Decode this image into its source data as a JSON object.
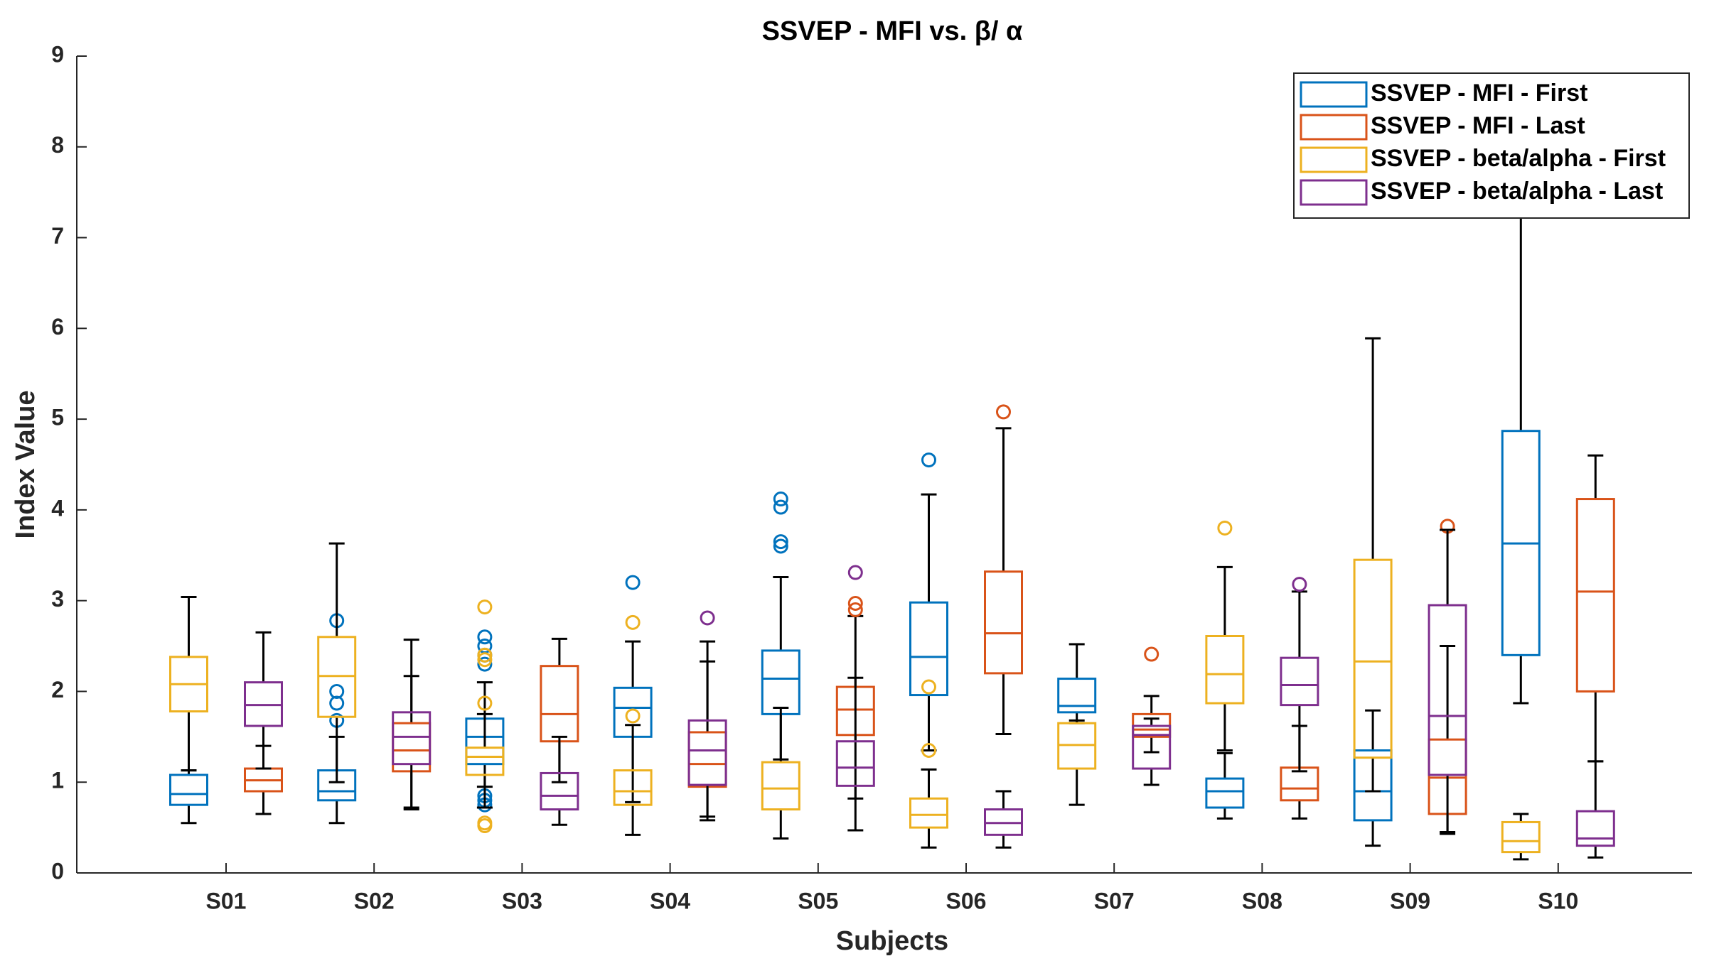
{
  "chart_data": {
    "type": "box",
    "title": "SSVEP - MFI vs.  β/ α",
    "xlabel": "Subjects",
    "ylabel": "Index Value",
    "categories": [
      "S01",
      "S02",
      "S03",
      "S04",
      "S05",
      "S06",
      "S07",
      "S08",
      "S09",
      "S10"
    ],
    "ylim": [
      0,
      9
    ],
    "yticks": [
      0,
      1,
      2,
      3,
      4,
      5,
      6,
      7,
      8,
      9
    ],
    "legend": "upper right",
    "series": [
      {
        "name": "SSVEP - MFI - First",
        "color": "#0072bd",
        "position": "first",
        "boxes": [
          {
            "min": 0.55,
            "q1": 0.75,
            "median": 0.87,
            "q3": 1.08,
            "max": 1.13,
            "outliers": []
          },
          {
            "min": 0.55,
            "q1": 0.8,
            "median": 0.9,
            "q3": 1.13,
            "max": 1.5,
            "outliers": [
              1.68,
              1.87,
              2.0,
              2.78
            ]
          },
          {
            "min": 0.95,
            "q1": 1.2,
            "median": 1.5,
            "q3": 1.7,
            "max": 2.1,
            "outliers": [
              0.75,
              0.8,
              0.85,
              2.3,
              2.4,
              2.5,
              2.6
            ]
          },
          {
            "min": 0.78,
            "q1": 1.5,
            "median": 1.82,
            "q3": 2.04,
            "max": 2.55,
            "outliers": [
              3.2
            ]
          },
          {
            "min": 1.25,
            "q1": 1.75,
            "median": 2.14,
            "q3": 2.45,
            "max": 3.26,
            "outliers": [
              3.6,
              3.65,
              4.03,
              4.12
            ]
          },
          {
            "min": 1.35,
            "q1": 1.96,
            "median": 2.38,
            "q3": 2.98,
            "max": 4.17,
            "outliers": [
              4.55
            ]
          },
          {
            "min": 1.65,
            "q1": 1.77,
            "median": 1.84,
            "q3": 2.14,
            "max": 2.52,
            "outliers": []
          },
          {
            "min": 0.6,
            "q1": 0.72,
            "median": 0.9,
            "q3": 1.04,
            "max": 1.32,
            "outliers": []
          },
          {
            "min": 0.3,
            "q1": 0.58,
            "median": 0.9,
            "q3": 1.35,
            "max": 1.79,
            "outliers": []
          },
          {
            "min": 1.87,
            "q1": 2.4,
            "median": 3.63,
            "q3": 4.87,
            "max": 7.9,
            "outliers": []
          }
        ]
      },
      {
        "name": "SSVEP - MFI - Last",
        "color": "#d95319",
        "position": "last",
        "boxes": [
          {
            "min": 0.65,
            "q1": 0.9,
            "median": 1.02,
            "q3": 1.15,
            "max": 1.4,
            "outliers": []
          },
          {
            "min": 0.7,
            "q1": 1.12,
            "median": 1.35,
            "q3": 1.65,
            "max": 2.17,
            "outliers": []
          },
          {
            "min": 1.0,
            "q1": 1.45,
            "median": 1.75,
            "q3": 2.28,
            "max": 2.58,
            "outliers": []
          },
          {
            "min": 0.62,
            "q1": 0.95,
            "median": 1.2,
            "q3": 1.55,
            "max": 2.33,
            "outliers": []
          },
          {
            "min": 0.82,
            "q1": 1.52,
            "median": 1.8,
            "q3": 2.05,
            "max": 2.83,
            "outliers": [
              2.9,
              2.97
            ]
          },
          {
            "min": 1.53,
            "q1": 2.2,
            "median": 2.64,
            "q3": 3.32,
            "max": 4.9,
            "outliers": [
              5.08
            ]
          },
          {
            "min": 1.33,
            "q1": 1.5,
            "median": 1.58,
            "q3": 1.75,
            "max": 1.95,
            "outliers": [
              2.41
            ]
          },
          {
            "min": 0.6,
            "q1": 0.8,
            "median": 0.93,
            "q3": 1.16,
            "max": 1.62,
            "outliers": []
          },
          {
            "min": 0.45,
            "q1": 0.65,
            "median": 1.05,
            "q3": 1.47,
            "max": 2.5,
            "outliers": [
              3.82
            ]
          },
          {
            "min": 1.23,
            "q1": 2.0,
            "median": 3.1,
            "q3": 4.12,
            "max": 4.6,
            "outliers": []
          }
        ]
      },
      {
        "name": "SSVEP - beta/alpha - First",
        "color": "#edb120",
        "position": "first",
        "boxes": [
          {
            "min": 1.13,
            "q1": 1.78,
            "median": 2.08,
            "q3": 2.38,
            "max": 3.04,
            "outliers": []
          },
          {
            "min": 1.0,
            "q1": 1.72,
            "median": 2.17,
            "q3": 2.6,
            "max": 3.63,
            "outliers": []
          },
          {
            "min": 0.72,
            "q1": 1.08,
            "median": 1.28,
            "q3": 1.38,
            "max": 1.75,
            "outliers": [
              0.52,
              0.55,
              1.87,
              2.35,
              2.4,
              2.93
            ]
          },
          {
            "min": 0.42,
            "q1": 0.75,
            "median": 0.9,
            "q3": 1.13,
            "max": 1.63,
            "outliers": [
              1.73,
              2.76
            ]
          },
          {
            "min": 0.38,
            "q1": 0.7,
            "median": 0.93,
            "q3": 1.22,
            "max": 1.82,
            "outliers": []
          },
          {
            "min": 0.28,
            "q1": 0.5,
            "median": 0.64,
            "q3": 0.82,
            "max": 1.14,
            "outliers": [
              1.35,
              2.05
            ]
          },
          {
            "min": 0.75,
            "q1": 1.15,
            "median": 1.41,
            "q3": 1.65,
            "max": 1.68,
            "outliers": []
          },
          {
            "min": 1.35,
            "q1": 1.87,
            "median": 2.19,
            "q3": 2.61,
            "max": 3.37,
            "outliers": [
              3.8
            ]
          },
          {
            "min": 0.9,
            "q1": 1.27,
            "median": 2.33,
            "q3": 3.45,
            "max": 5.89,
            "outliers": []
          },
          {
            "min": 0.15,
            "q1": 0.23,
            "median": 0.35,
            "q3": 0.56,
            "max": 0.65,
            "outliers": []
          }
        ]
      },
      {
        "name": "SSVEP - beta/alpha - Last",
        "color": "#7e2f8e",
        "position": "last",
        "boxes": [
          {
            "min": 1.15,
            "q1": 1.62,
            "median": 1.85,
            "q3": 2.1,
            "max": 2.65,
            "outliers": []
          },
          {
            "min": 0.72,
            "q1": 1.2,
            "median": 1.5,
            "q3": 1.77,
            "max": 2.57,
            "outliers": []
          },
          {
            "min": 0.53,
            "q1": 0.7,
            "median": 0.85,
            "q3": 1.1,
            "max": 1.5,
            "outliers": []
          },
          {
            "min": 0.58,
            "q1": 0.97,
            "median": 1.35,
            "q3": 1.68,
            "max": 2.55,
            "outliers": [
              2.81
            ]
          },
          {
            "min": 0.47,
            "q1": 0.96,
            "median": 1.16,
            "q3": 1.45,
            "max": 2.15,
            "outliers": [
              3.31
            ]
          },
          {
            "min": 0.28,
            "q1": 0.42,
            "median": 0.55,
            "q3": 0.7,
            "max": 0.9,
            "outliers": []
          },
          {
            "min": 0.97,
            "q1": 1.15,
            "median": 1.52,
            "q3": 1.62,
            "max": 1.7,
            "outliers": []
          },
          {
            "min": 1.12,
            "q1": 1.85,
            "median": 2.07,
            "q3": 2.37,
            "max": 3.1,
            "outliers": [
              3.18
            ]
          },
          {
            "min": 0.43,
            "q1": 1.08,
            "median": 1.73,
            "q3": 2.95,
            "max": 3.78,
            "outliers": []
          },
          {
            "min": 0.17,
            "q1": 0.3,
            "median": 0.38,
            "q3": 0.68,
            "max": 1.23,
            "outliers": []
          }
        ]
      }
    ]
  }
}
